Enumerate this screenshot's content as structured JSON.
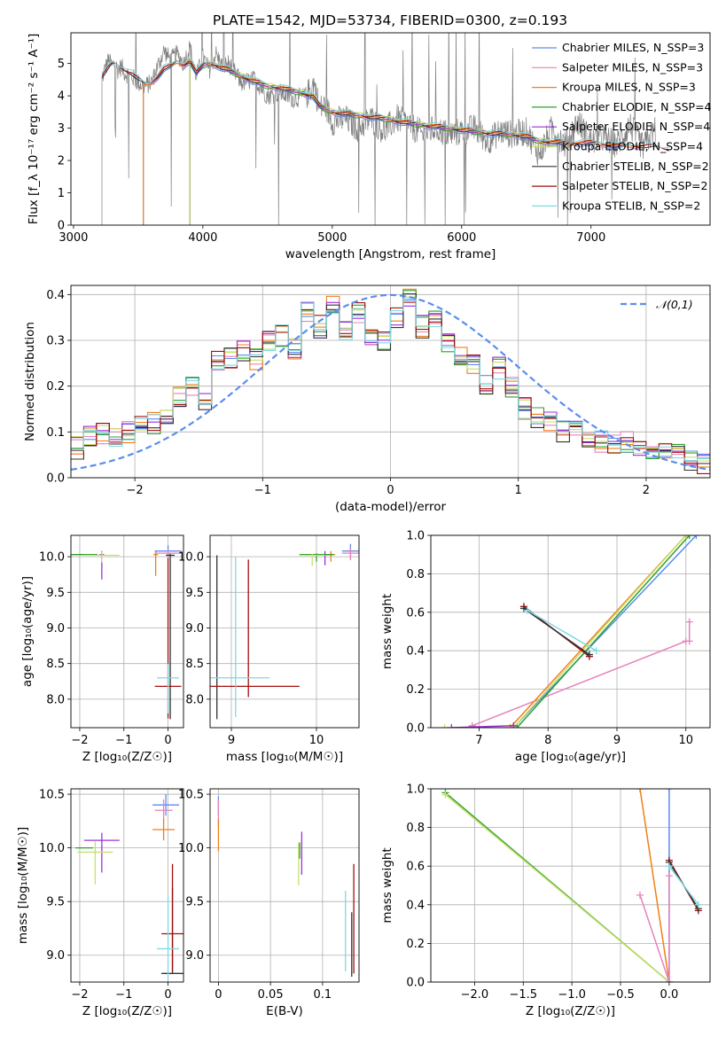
{
  "figure": {
    "title": "PLATE=1542, MJD=53734, FIBERID=0300, z=0.193"
  },
  "chart_data": [
    {
      "id": "spectrum",
      "type": "line",
      "xlabel": "wavelength [Angstrom, rest frame]",
      "ylabel": "Flux [f_λ 10⁻¹⁷ erg cm⁻² s⁻¹ A⁻¹]",
      "xlim": [
        2980,
        7920
      ],
      "ylim": [
        0,
        5.95
      ],
      "xticks": [
        3000,
        4000,
        5000,
        6000,
        7000
      ],
      "yticks": [
        0,
        1,
        2,
        3,
        4,
        5
      ],
      "grid": false,
      "legend_position": "top-right",
      "data_series": {
        "name": "",
        "color": "#808080",
        "x": [
          3220,
          3240,
          3270,
          3300,
          3320,
          3340,
          3370,
          3400,
          3450,
          3500,
          3550,
          3600,
          3650,
          3700,
          3750,
          3800,
          3850,
          3900,
          3950,
          4000,
          4050,
          4100,
          4150,
          4200,
          4300,
          4400,
          4500,
          4600,
          4700,
          4800,
          4860,
          4900,
          4950,
          5000,
          5100,
          5200,
          5300,
          5400,
          5500,
          5600,
          5700,
          5800,
          5900,
          6000,
          6100,
          6200,
          6300,
          6400,
          6500,
          6600,
          6700,
          6800,
          6900,
          7000,
          7100,
          7200,
          7300,
          7400,
          7500
        ],
        "y": [
          4.5,
          4.8,
          5.1,
          4.9,
          5.0,
          4.8,
          4.9,
          4.7,
          4.6,
          4.4,
          4.3,
          4.4,
          4.9,
          5.4,
          5.1,
          5.3,
          5.0,
          5.5,
          4.6,
          5.2,
          4.8,
          5.3,
          4.9,
          5.0,
          4.4,
          4.5,
          4.0,
          4.1,
          3.9,
          4.0,
          4.4,
          3.6,
          3.7,
          3.2,
          3.3,
          3.0,
          3.3,
          2.9,
          3.3,
          3.1,
          2.8,
          3.0,
          2.8,
          2.9,
          3.0,
          2.6,
          2.9,
          2.8,
          2.9,
          2.2,
          3.0,
          2.5,
          3.2,
          2.6,
          2.7,
          2.5,
          3.1,
          2.4,
          3.0
        ]
      },
      "models": [
        {
          "name": "Chabrier MILES, N_SSP=3",
          "color": "#5b8def",
          "x_start": 3540,
          "x_end": 7400
        },
        {
          "name": "Salpeter MILES, N_SSP=3",
          "color": "#e583bd",
          "x_start": 3540,
          "x_end": 7400
        },
        {
          "name": "Kroupa MILES, N_SSP=3",
          "color": "#f07f19",
          "x_start": 3540,
          "x_end": 7400
        },
        {
          "name": "Chabrier ELODIE, N_SSP=4",
          "color": "#2ca02c",
          "x_start": 3900,
          "x_end": 6800
        },
        {
          "name": "Salpeter ELODIE, N_SSP=4",
          "color": "#9b30d9",
          "x_start": 3900,
          "x_end": 6800
        },
        {
          "name": "Kroupa ELODIE, N_SSP=4",
          "color": "#c7e06a",
          "x_start": 3900,
          "x_end": 6800
        },
        {
          "name": "Chabrier STELIB, N_SSP=2",
          "color": "#333333",
          "x_start": 3220,
          "x_end": 7600
        },
        {
          "name": "Salpeter STELIB, N_SSP=2",
          "color": "#a40f0f",
          "x_start": 3220,
          "x_end": 7600
        },
        {
          "name": "Kroupa STELIB, N_SSP=2",
          "color": "#7fd9e0",
          "x_start": 3220,
          "x_end": 7600
        }
      ],
      "model_curve": {
        "x": [
          3220,
          3300,
          3350,
          3400,
          3450,
          3500,
          3550,
          3600,
          3650,
          3700,
          3750,
          3800,
          3850,
          3900,
          3950,
          4000,
          4050,
          4100,
          4200,
          4300,
          4400,
          4500,
          4600,
          4700,
          4800,
          4850,
          4900,
          5000,
          5200,
          5400,
          5600,
          5800,
          6000,
          6200,
          6400,
          6500,
          6600,
          6800,
          7000,
          7200,
          7400,
          7600
        ],
        "y": [
          4.6,
          5.0,
          4.9,
          4.8,
          4.7,
          4.5,
          4.35,
          4.4,
          4.6,
          4.85,
          4.9,
          5.05,
          4.95,
          5.1,
          4.7,
          4.95,
          5.0,
          4.95,
          4.8,
          4.6,
          4.45,
          4.3,
          4.25,
          4.15,
          4.05,
          4.0,
          3.7,
          3.5,
          3.4,
          3.3,
          3.15,
          3.05,
          2.95,
          2.85,
          2.8,
          2.75,
          2.6,
          2.55,
          2.55,
          2.45,
          2.45,
          2.35
        ]
      }
    },
    {
      "id": "residuals",
      "type": "line",
      "xlabel": "(data-model)/error",
      "ylabel": "Normed distribution",
      "xlim": [
        -2.5,
        2.5
      ],
      "ylim": [
        0,
        0.42
      ],
      "xticks": [
        -2,
        -1,
        0,
        1,
        2
      ],
      "yticks": [
        0.0,
        0.1,
        0.2,
        0.3,
        0.4
      ],
      "grid": true,
      "legend_position": "top-right",
      "gaussian": {
        "name": "𝒩(0,1)",
        "color": "#5b8def",
        "mean": 0,
        "sigma": 1
      },
      "bin_edges": [
        -2.5,
        -2.4,
        -2.3,
        -2.2,
        -2.1,
        -2.0,
        -1.9,
        -1.8,
        -1.7,
        -1.6,
        -1.5,
        -1.4,
        -1.3,
        -1.2,
        -1.1,
        -1.0,
        -0.9,
        -0.8,
        -0.7,
        -0.6,
        -0.5,
        -0.4,
        -0.3,
        -0.2,
        -0.1,
        0.0,
        0.1,
        0.2,
        0.3,
        0.4,
        0.5,
        0.6,
        0.7,
        0.8,
        0.9,
        1.0,
        1.1,
        1.2,
        1.3,
        1.4,
        1.5,
        1.6,
        1.7,
        1.8,
        1.9,
        2.0,
        2.1,
        2.2,
        2.3,
        2.4,
        2.5
      ],
      "base_hist": [
        0.065,
        0.09,
        0.095,
        0.09,
        0.1,
        0.11,
        0.12,
        0.14,
        0.18,
        0.2,
        0.16,
        0.26,
        0.26,
        0.28,
        0.26,
        0.3,
        0.31,
        0.28,
        0.36,
        0.33,
        0.38,
        0.32,
        0.36,
        0.31,
        0.3,
        0.35,
        0.39,
        0.33,
        0.34,
        0.3,
        0.26,
        0.25,
        0.2,
        0.24,
        0.2,
        0.15,
        0.13,
        0.12,
        0.1,
        0.1,
        0.09,
        0.08,
        0.07,
        0.08,
        0.07,
        0.06,
        0.06,
        0.05,
        0.04,
        0.03
      ]
    },
    {
      "id": "age-vs-Z",
      "type": "scatter",
      "xlabel": "Z [log₁₀(Z/Z☉)]",
      "ylabel": "age [log₁₀(age/yr)]",
      "xlim": [
        -2.2,
        0.35
      ],
      "ylim": [
        7.6,
        10.3
      ],
      "xticks": [
        -2,
        -1,
        0
      ],
      "yticks": [
        8.0,
        8.5,
        9.0,
        9.5,
        10.0
      ],
      "grid": true,
      "points": [
        {
          "x": -0.28,
          "y": 10.03,
          "xerr": 0.05,
          "yerr_lo": 0.3,
          "yerr_hi": 0.05,
          "color": "#f07f19"
        },
        {
          "x": 0.0,
          "y": 10.08,
          "xerr": 0.3,
          "yerr_lo": 0.1,
          "yerr_hi": 0.08,
          "color": "#5b8def"
        },
        {
          "x": 0.0,
          "y": 10.05,
          "xerr": 0.3,
          "yerr_lo": 0.1,
          "yerr_hi": 0.05,
          "color": "#e583bd"
        },
        {
          "x": -1.5,
          "y": 10.03,
          "xerr": 0.05,
          "yerr_lo": 0.35,
          "yerr_hi": 0.05,
          "color": "#9b30d9"
        },
        {
          "x": -1.9,
          "y": 10.03,
          "xerr": 0.3,
          "yerr_lo": 0.0,
          "yerr_hi": 0.0,
          "color": "#2ca02c"
        },
        {
          "x": -1.5,
          "y": 10.02,
          "xerr": 0.4,
          "yerr_lo": 0.1,
          "yerr_hi": 0.05,
          "color": "#c7e06a"
        },
        {
          "x": 0.05,
          "y": 10.02,
          "xerr": 0.1,
          "yerr_lo": 2.3,
          "yerr_hi": 0.02,
          "color": "#333333"
        },
        {
          "x": 0.0,
          "y": 8.18,
          "xerr": 0.3,
          "yerr_lo": 0.45,
          "yerr_hi": 1.8,
          "color": "#a40f0f"
        },
        {
          "x": 0.0,
          "y": 8.3,
          "xerr": 0.25,
          "yerr_lo": 0.5,
          "yerr_hi": 0.2,
          "color": "#7fd9e0"
        }
      ]
    },
    {
      "id": "age-vs-mass",
      "type": "scatter",
      "xlabel": "mass [log₁₀(M/M☉)]",
      "ylabel": "",
      "xlim": [
        8.75,
        10.5
      ],
      "ylim": [
        7.6,
        10.3
      ],
      "xticks": [
        9,
        10
      ],
      "yticks": [
        8.0,
        8.5,
        9.0,
        9.5,
        10.0
      ],
      "grid": true,
      "points": [
        {
          "x": 10.4,
          "y": 10.08,
          "xerr": 0.1,
          "yerr_lo": 0.1,
          "yerr_hi": 0.1,
          "color": "#5b8def"
        },
        {
          "x": 10.4,
          "y": 10.05,
          "xerr": 0.1,
          "yerr_lo": 0.1,
          "yerr_hi": 0.08,
          "color": "#e583bd"
        },
        {
          "x": 10.17,
          "y": 10.03,
          "xerr": 0.05,
          "yerr_lo": 0.1,
          "yerr_hi": 0.05,
          "color": "#f07f19"
        },
        {
          "x": 10.1,
          "y": 10.03,
          "xerr": 0.05,
          "yerr_lo": 0.15,
          "yerr_hi": 0.05,
          "color": "#9b30d9"
        },
        {
          "x": 10.0,
          "y": 10.03,
          "xerr": 0.2,
          "yerr_lo": 0.1,
          "yerr_hi": 0.02,
          "color": "#2ca02c"
        },
        {
          "x": 9.95,
          "y": 10.02,
          "xerr": 0.15,
          "yerr_lo": 0.15,
          "yerr_hi": 0.02,
          "color": "#c7e06a"
        },
        {
          "x": 8.83,
          "y": 10.02,
          "xerr": 0.0,
          "yerr_lo": 2.3,
          "yerr_hi": 0.0,
          "color": "#333333"
        },
        {
          "x": 9.2,
          "y": 8.18,
          "xerr": 0.6,
          "yerr_lo": 0.15,
          "yerr_hi": 1.78,
          "color": "#a40f0f"
        },
        {
          "x": 9.05,
          "y": 8.3,
          "xerr": 0.4,
          "yerr_lo": 0.55,
          "yerr_hi": 1.7,
          "color": "#7fd9e0"
        }
      ]
    },
    {
      "id": "weight-vs-age",
      "type": "line",
      "xlabel": "age [log₁₀(age/yr)]",
      "ylabel": "mass weight",
      "xlim": [
        6.3,
        10.35
      ],
      "ylim": [
        0,
        1.0
      ],
      "xticks": [
        7,
        8,
        9,
        10
      ],
      "yticks": [
        0.0,
        0.2,
        0.4,
        0.6,
        0.8,
        1.0
      ],
      "grid": true,
      "series": [
        {
          "color": "#e583bd",
          "x": [
            6.9,
            10.0
          ],
          "y": [
            0.01,
            0.45
          ]
        },
        {
          "color": "#e583bd",
          "x": [
            10.05,
            10.05
          ],
          "y": [
            0.45,
            0.55
          ]
        },
        {
          "color": "#f07f19",
          "x": [
            7.45,
            10.0
          ],
          "y": [
            0.0,
            1.0
          ]
        },
        {
          "color": "#5b8def",
          "x": [
            7.5,
            10.15
          ],
          "y": [
            0.0,
            1.0
          ]
        },
        {
          "color": "#2ca02c",
          "x": [
            7.55,
            10.05
          ],
          "y": [
            0.0,
            1.0
          ]
        },
        {
          "color": "#c7e06a",
          "x": [
            6.5,
            7.5,
            10.0
          ],
          "y": [
            0.0,
            0.0,
            1.0
          ]
        },
        {
          "color": "#9b30d9",
          "x": [
            6.6,
            7.5
          ],
          "y": [
            0.0,
            0.01
          ]
        },
        {
          "color": "#a40f0f",
          "x": [
            7.65,
            8.6
          ],
          "y": [
            0.63,
            0.37
          ]
        },
        {
          "color": "#333333",
          "x": [
            7.65,
            8.6
          ],
          "y": [
            0.62,
            0.38
          ]
        },
        {
          "color": "#7fd9e0",
          "x": [
            7.7,
            8.7
          ],
          "y": [
            0.61,
            0.4
          ]
        }
      ]
    },
    {
      "id": "mass-vs-Z",
      "type": "scatter",
      "xlabel": "Z [log₁₀(Z/Z☉)]",
      "ylabel": "mass [log₁₀(M/M☉)]",
      "xlim": [
        -2.2,
        0.35
      ],
      "ylim": [
        8.75,
        10.55
      ],
      "xticks": [
        -2,
        -1,
        0
      ],
      "yticks": [
        9.0,
        9.5,
        10.0,
        10.5
      ],
      "grid": true,
      "points": [
        {
          "x": -0.05,
          "y": 10.4,
          "xerr": 0.3,
          "yerr_lo": 0.1,
          "yerr_hi": 0.1,
          "color": "#5b8def"
        },
        {
          "x": -0.1,
          "y": 10.35,
          "xerr": 0.2,
          "yerr_lo": 0.1,
          "yerr_hi": 0.1,
          "color": "#e583bd"
        },
        {
          "x": -0.1,
          "y": 10.17,
          "xerr": 0.25,
          "yerr_lo": 0.1,
          "yerr_hi": 0.1,
          "color": "#f07f19"
        },
        {
          "x": -1.5,
          "y": 10.07,
          "xerr": 0.4,
          "yerr_lo": 0.3,
          "yerr_hi": 0.07,
          "color": "#9b30d9"
        },
        {
          "x": -1.9,
          "y": 10.0,
          "xerr": 0.2,
          "yerr_lo": 0.0,
          "yerr_hi": 0.0,
          "color": "#2ca02c"
        },
        {
          "x": -1.65,
          "y": 9.96,
          "xerr": 0.4,
          "yerr_lo": 0.3,
          "yerr_hi": 0.1,
          "color": "#c7e06a"
        },
        {
          "x": 0.1,
          "y": 8.83,
          "xerr": 0.25,
          "yerr_lo": 0.0,
          "yerr_hi": 0.8,
          "color": "#333333"
        },
        {
          "x": 0.1,
          "y": 9.2,
          "xerr": 0.25,
          "yerr_lo": 0.35,
          "yerr_hi": 0.65,
          "color": "#a40f0f"
        },
        {
          "x": 0.0,
          "y": 9.06,
          "xerr": 0.25,
          "yerr_lo": 0.3,
          "yerr_hi": 0.5,
          "color": "#7fd9e0"
        }
      ]
    },
    {
      "id": "mass-vs-ebv",
      "type": "scatter",
      "xlabel": "E(B-V)",
      "ylabel": "",
      "xlim": [
        -0.008,
        0.135
      ],
      "ylim": [
        8.75,
        10.55
      ],
      "xticks": [
        0.0,
        0.05,
        0.1
      ],
      "yticks": [
        9.0,
        9.5,
        10.0,
        10.5
      ],
      "grid": true,
      "points": [
        {
          "x": 0.0,
          "y": 10.4,
          "xerr": 0,
          "yerr_lo": 0.1,
          "yerr_hi": 0.08,
          "color": "#5b8def"
        },
        {
          "x": 0.0,
          "y": 10.35,
          "xerr": 0,
          "yerr_lo": 0.15,
          "yerr_hi": 0.1,
          "color": "#e583bd"
        },
        {
          "x": 0.0,
          "y": 10.17,
          "xerr": 0,
          "yerr_lo": 0.2,
          "yerr_hi": 0.1,
          "color": "#f07f19"
        },
        {
          "x": 0.08,
          "y": 10.0,
          "xerr": 0,
          "yerr_lo": 0.25,
          "yerr_hi": 0.15,
          "color": "#9b30d9"
        },
        {
          "x": 0.078,
          "y": 10.0,
          "xerr": 0,
          "yerr_lo": 0.1,
          "yerr_hi": 0.05,
          "color": "#2ca02c"
        },
        {
          "x": 0.077,
          "y": 9.9,
          "xerr": 0,
          "yerr_lo": 0.25,
          "yerr_hi": 0.15,
          "color": "#c7e06a"
        },
        {
          "x": 0.13,
          "y": 9.3,
          "xerr": 0,
          "yerr_lo": 0.47,
          "yerr_hi": 0.55,
          "color": "#a40f0f"
        },
        {
          "x": 0.128,
          "y": 9.2,
          "xerr": 0,
          "yerr_lo": 0.4,
          "yerr_hi": 0.2,
          "color": "#333333"
        },
        {
          "x": 0.122,
          "y": 9.2,
          "xerr": 0,
          "yerr_lo": 0.35,
          "yerr_hi": 0.4,
          "color": "#7fd9e0"
        }
      ]
    },
    {
      "id": "weight-vs-Z",
      "type": "line",
      "xlabel": "Z [log₁₀(Z/Z☉)]",
      "ylabel": "mass weight",
      "xlim": [
        -2.45,
        0.42
      ],
      "ylim": [
        0,
        1.0
      ],
      "xticks": [
        -2.0,
        -1.5,
        -1.0,
        -0.5,
        0.0
      ],
      "yticks": [
        0.0,
        0.2,
        0.4,
        0.6,
        0.8,
        1.0
      ],
      "grid": true,
      "series": [
        {
          "color": "#2ca02c",
          "x": [
            -2.3,
            0.0
          ],
          "y": [
            0.98,
            0.0
          ]
        },
        {
          "color": "#c7e06a",
          "x": [
            -2.3,
            0.0
          ],
          "y": [
            0.97,
            0.0
          ]
        },
        {
          "color": "#f07f19",
          "x": [
            -0.3,
            0.0
          ],
          "y": [
            1.0,
            0.0
          ]
        },
        {
          "color": "#5b8def",
          "x": [
            0.0,
            0.0
          ],
          "y": [
            1.0,
            0.0
          ]
        },
        {
          "color": "#e583bd",
          "x": [
            -0.3,
            0.0,
            0.0
          ],
          "y": [
            0.45,
            0.0,
            0.55
          ]
        },
        {
          "color": "#a40f0f",
          "x": [
            0.0,
            0.3
          ],
          "y": [
            0.63,
            0.37
          ]
        },
        {
          "color": "#333333",
          "x": [
            0.0,
            0.3
          ],
          "y": [
            0.62,
            0.38
          ]
        },
        {
          "color": "#7fd9e0",
          "x": [
            0.0,
            0.3
          ],
          "y": [
            0.6,
            0.4
          ]
        }
      ]
    }
  ]
}
